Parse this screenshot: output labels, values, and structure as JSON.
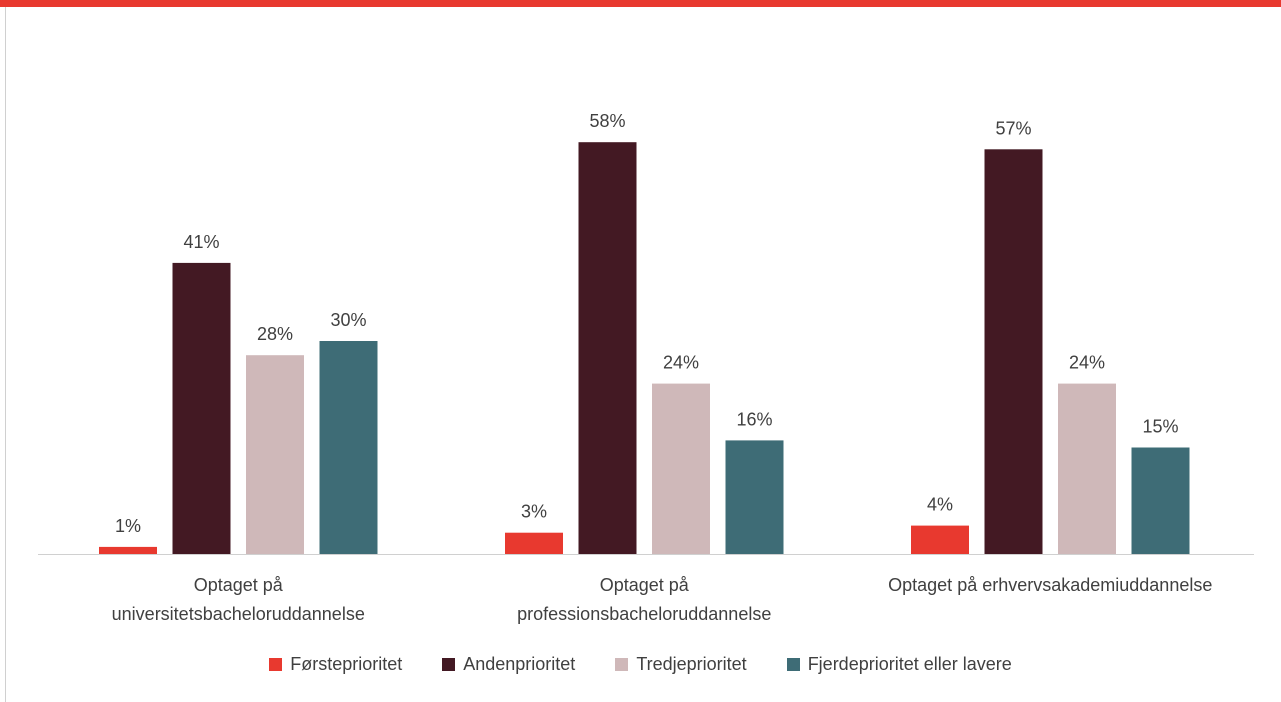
{
  "chart_data": {
    "type": "bar",
    "categories": [
      [
        "Optaget på",
        "universitetsbacheloruddannelse"
      ],
      [
        "Optaget på",
        "professionsbacheloruddannelse"
      ],
      [
        "Optaget på erhvervsakademiuddannelse"
      ]
    ],
    "series": [
      {
        "name": "Førsteprioritet",
        "color": "#e8392f",
        "values": [
          1,
          3,
          4
        ],
        "labels": [
          "1%",
          "3%",
          "4%"
        ]
      },
      {
        "name": "Andenprioritet",
        "color": "#431923",
        "values": [
          41,
          58,
          57
        ],
        "labels": [
          "41%",
          "58%",
          "57%"
        ]
      },
      {
        "name": "Tredjeprioritet",
        "color": "#cfb8b9",
        "values": [
          28,
          24,
          24
        ],
        "labels": [
          "28%",
          "24%",
          "24%"
        ]
      },
      {
        "name": "Fjerdeprioritet eller lavere",
        "color": "#3e6c76",
        "values": [
          30,
          16,
          15
        ],
        "labels": [
          "30%",
          "16%",
          "15%"
        ]
      }
    ],
    "ylim": [
      0,
      70
    ],
    "grid": false,
    "legend_position": "bottom"
  },
  "accent_color": "#e8392f"
}
